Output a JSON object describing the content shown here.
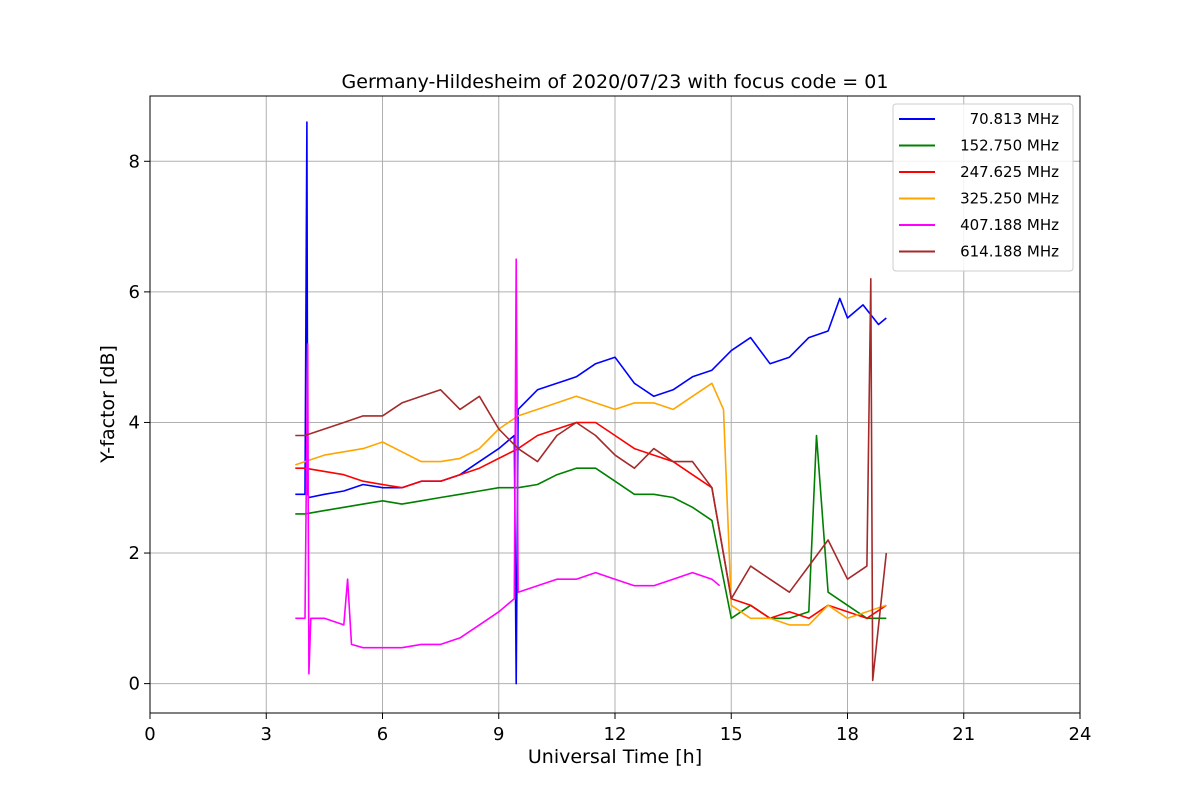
{
  "chart_data": {
    "type": "line",
    "title": "Germany-Hildesheim of 2020/07/23 with focus code = 01",
    "xlabel": "Universal Time [h]",
    "ylabel": "Y-factor [dB]",
    "xlim": [
      0,
      24
    ],
    "ylim": [
      -0.45,
      9.0
    ],
    "xticks": [
      0,
      3,
      6,
      9,
      12,
      15,
      18,
      21,
      24
    ],
    "yticks": [
      0,
      2,
      4,
      6,
      8
    ],
    "grid": true,
    "legend_position": "top-right",
    "series": [
      {
        "name": "70.813 MHz",
        "color": "#0000ff",
        "x": [
          3.75,
          4.0,
          4.05,
          4.07,
          4.1,
          4.5,
          5.0,
          5.5,
          6.0,
          6.5,
          7.0,
          7.5,
          8.0,
          8.5,
          9.0,
          9.4,
          9.45,
          9.5,
          10.0,
          10.5,
          11.0,
          11.5,
          12.0,
          12.5,
          13.0,
          13.5,
          14.0,
          14.5,
          15.0,
          15.5,
          16.0,
          16.5,
          17.0,
          17.5,
          17.8,
          18.0,
          18.4,
          18.8,
          19.0
        ],
        "y": [
          2.9,
          2.9,
          8.6,
          2.9,
          2.85,
          2.9,
          2.95,
          3.05,
          3.0,
          3.0,
          3.1,
          3.1,
          3.2,
          3.4,
          3.6,
          3.8,
          0.0,
          4.2,
          4.5,
          4.6,
          4.7,
          4.9,
          5.0,
          4.6,
          4.4,
          4.5,
          4.7,
          4.8,
          5.1,
          5.3,
          4.9,
          5.0,
          5.3,
          5.4,
          5.9,
          5.6,
          5.8,
          5.5,
          5.6
        ]
      },
      {
        "name": "152.750 MHz",
        "color": "#008000",
        "x": [
          3.75,
          4.0,
          4.5,
          5.0,
          5.5,
          6.0,
          6.5,
          7.0,
          7.5,
          8.0,
          8.5,
          9.0,
          9.5,
          10.0,
          10.5,
          11.0,
          11.5,
          12.0,
          12.5,
          13.0,
          13.5,
          14.0,
          14.5,
          15.0,
          15.5,
          16.0,
          16.5,
          17.0,
          17.2,
          17.5,
          18.0,
          18.5,
          19.0
        ],
        "y": [
          2.6,
          2.6,
          2.65,
          2.7,
          2.75,
          2.8,
          2.75,
          2.8,
          2.85,
          2.9,
          2.95,
          3.0,
          3.0,
          3.05,
          3.2,
          3.3,
          3.3,
          3.1,
          2.9,
          2.9,
          2.85,
          2.7,
          2.5,
          1.0,
          1.2,
          1.0,
          1.0,
          1.1,
          3.8,
          1.4,
          1.2,
          1.0,
          1.0
        ]
      },
      {
        "name": "247.625 MHz",
        "color": "#ff0000",
        "x": [
          3.75,
          4.0,
          4.5,
          5.0,
          5.5,
          6.0,
          6.5,
          7.0,
          7.5,
          8.0,
          8.5,
          9.0,
          9.5,
          10.0,
          10.5,
          11.0,
          11.5,
          12.0,
          12.5,
          13.0,
          13.5,
          14.0,
          14.5,
          15.0,
          15.5,
          16.0,
          16.5,
          17.0,
          17.5,
          18.0,
          18.5,
          19.0
        ],
        "y": [
          3.3,
          3.3,
          3.25,
          3.2,
          3.1,
          3.05,
          3.0,
          3.1,
          3.1,
          3.2,
          3.3,
          3.45,
          3.6,
          3.8,
          3.9,
          4.0,
          4.0,
          3.8,
          3.6,
          3.5,
          3.4,
          3.2,
          3.0,
          1.3,
          1.2,
          1.0,
          1.1,
          1.0,
          1.2,
          1.1,
          1.0,
          1.2
        ]
      },
      {
        "name": "325.250 MHz",
        "color": "#ffa500",
        "x": [
          3.75,
          4.0,
          4.5,
          5.0,
          5.5,
          6.0,
          6.5,
          7.0,
          7.5,
          8.0,
          8.5,
          9.0,
          9.5,
          10.0,
          10.5,
          11.0,
          11.5,
          12.0,
          12.5,
          13.0,
          13.5,
          14.0,
          14.5,
          14.8,
          15.0,
          15.5,
          16.0,
          16.5,
          17.0,
          17.5,
          18.0,
          18.5,
          19.0
        ],
        "y": [
          3.35,
          3.4,
          3.5,
          3.55,
          3.6,
          3.7,
          3.55,
          3.4,
          3.4,
          3.45,
          3.6,
          3.9,
          4.1,
          4.2,
          4.3,
          4.4,
          4.3,
          4.2,
          4.3,
          4.3,
          4.2,
          4.4,
          4.6,
          4.2,
          1.2,
          1.0,
          1.0,
          0.9,
          0.9,
          1.2,
          1.0,
          1.1,
          1.2
        ]
      },
      {
        "name": "407.188 MHz",
        "color": "#ff00ff",
        "x": [
          3.75,
          4.0,
          4.07,
          4.1,
          4.15,
          4.5,
          5.0,
          5.1,
          5.2,
          5.5,
          6.0,
          6.5,
          7.0,
          7.5,
          8.0,
          8.5,
          9.0,
          9.4,
          9.45,
          9.5,
          10.0,
          10.5,
          11.0,
          11.5,
          12.0,
          12.5,
          13.0,
          13.5,
          14.0,
          14.5,
          14.7
        ],
        "y": [
          1.0,
          1.0,
          5.2,
          0.15,
          1.0,
          1.0,
          0.9,
          1.6,
          0.6,
          0.55,
          0.55,
          0.55,
          0.6,
          0.6,
          0.7,
          0.9,
          1.1,
          1.3,
          6.5,
          1.4,
          1.5,
          1.6,
          1.6,
          1.7,
          1.6,
          1.5,
          1.5,
          1.6,
          1.7,
          1.6,
          1.5
        ]
      },
      {
        "name": "614.188 MHz",
        "color": "#a52a2a",
        "x": [
          3.75,
          4.0,
          4.5,
          5.0,
          5.5,
          6.0,
          6.5,
          7.0,
          7.5,
          8.0,
          8.5,
          9.0,
          9.5,
          10.0,
          10.5,
          11.0,
          11.5,
          12.0,
          12.5,
          13.0,
          13.5,
          14.0,
          14.5,
          15.0,
          15.5,
          16.0,
          16.5,
          17.0,
          17.5,
          18.0,
          18.5,
          18.6,
          18.65,
          19.0
        ],
        "y": [
          3.8,
          3.8,
          3.9,
          4.0,
          4.1,
          4.1,
          4.3,
          4.4,
          4.5,
          4.2,
          4.4,
          3.9,
          3.6,
          3.4,
          3.8,
          4.0,
          3.8,
          3.5,
          3.3,
          3.6,
          3.4,
          3.4,
          3.0,
          1.3,
          1.8,
          1.6,
          1.4,
          1.8,
          2.2,
          1.6,
          1.8,
          6.2,
          0.05,
          2.0
        ]
      }
    ]
  }
}
